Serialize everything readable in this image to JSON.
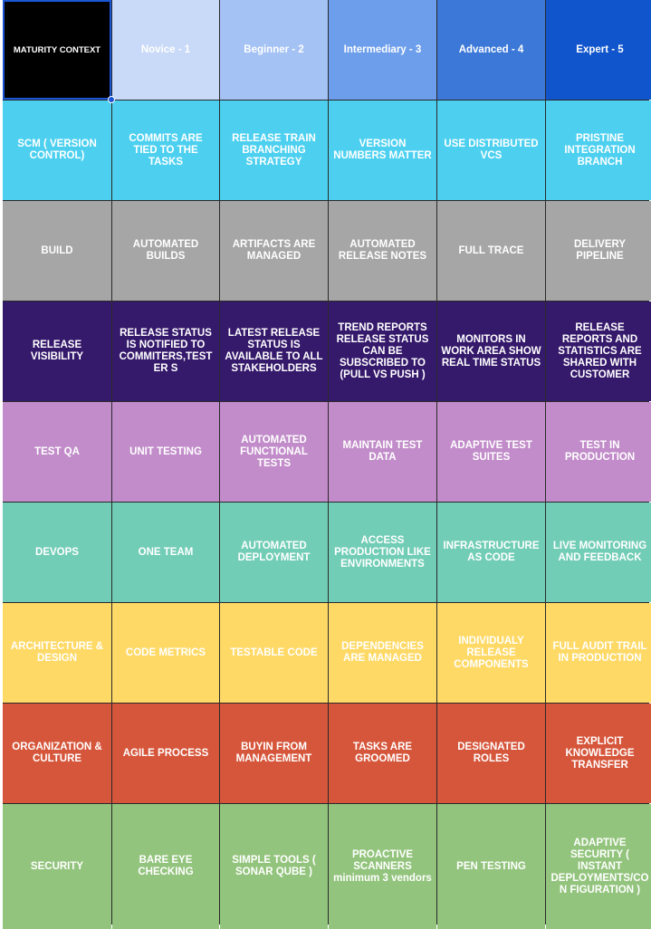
{
  "header": {
    "corner_label": "MATURITY CONTEXT",
    "corner_bg": "#000000",
    "columns": [
      {
        "label": "Novice - 1",
        "bg": "#c9daf8"
      },
      {
        "label": "Beginner - 2",
        "bg": "#a4c2f4"
      },
      {
        "label": "Intermediary - 3",
        "bg": "#6d9eeb"
      },
      {
        "label": "Advanced - 4",
        "bg": "#3c78d8"
      },
      {
        "label": "Expert - 5",
        "bg": "#1155cc"
      }
    ]
  },
  "rows": [
    {
      "label": "SCM ( VERSION CONTROL)",
      "bg": "#4dd0f0",
      "cells": [
        "COMMITS ARE TIED TO THE TASKS",
        "RELEASE TRAIN BRANCHING STRATEGY",
        "VERSION NUMBERS MATTER",
        "USE DISTRIBUTED VCS",
        "PRISTINE INTEGRATION BRANCH"
      ]
    },
    {
      "label": "BUILD",
      "bg": "#a6a6a6",
      "cells": [
        "AUTOMATED BUILDS",
        "ARTIFACTS ARE MANAGED",
        "AUTOMATED RELEASE NOTES",
        "FULL TRACE",
        "DELIVERY PIPELINE"
      ]
    },
    {
      "label": "RELEASE VISIBILITY",
      "bg": "#35196b",
      "cells": [
        "RELEASE STATUS IS NOTIFIED TO COMMITERS,TESTER S",
        "LATEST RELEASE STATUS IS AVAILABLE TO ALL STAKEHOLDERS",
        "TREND REPORTS RELEASE STATUS CAN BE SUBSCRIBED TO (PULL VS PUSH )",
        "MONITORS IN WORK AREA   SHOW REAL TIME STATUS",
        "RELEASE REPORTS AND STATISTICS ARE SHARED WITH CUSTOMER"
      ]
    },
    {
      "label": "TEST QA",
      "bg": "#c18cc9",
      "cells": [
        "UNIT TESTING",
        "AUTOMATED FUNCTIONAL TESTS",
        "MAINTAIN TEST DATA",
        "ADAPTIVE TEST SUITES",
        "TEST IN PRODUCTION"
      ]
    },
    {
      "label": "DEVOPS",
      "bg": "#72cdb6",
      "cells": [
        "ONE TEAM",
        "AUTOMATED DEPLOYMENT",
        "ACCESS PRODUCTION LIKE ENVIRONMENTS",
        "INFRASTRUCTURE AS CODE",
        "LIVE MONITORING AND FEEDBACK"
      ]
    },
    {
      "label": "ARCHITECTURE & DESIGN",
      "bg": "#ffd966",
      "cells": [
        "CODE METRICS",
        "TESTABLE CODE",
        "DEPENDENCIES ARE MANAGED",
        "INDIVIDUALY RELEASE COMPONENTS",
        "FULL AUDIT TRAIL IN PRODUCTION"
      ]
    },
    {
      "label": "ORGANIZATION & CULTURE",
      "bg": "#d6563b",
      "cells": [
        "AGILE PROCESS",
        "BUYIN FROM MANAGEMENT",
        "TASKS ARE GROOMED",
        "DESIGNATED ROLES",
        "EXPLICIT KNOWLEDGE TRANSFER"
      ]
    },
    {
      "label": "SECURITY",
      "bg": "#93c47d",
      "cells": [
        "BARE EYE CHECKING",
        "SIMPLE TOOLS ( SONAR QUBE )",
        "PROACTIVE SCANNERS minimum 3 vendors",
        "PEN TESTING",
        "ADAPTIVE SECURITY ( INSTANT DEPLOYMENTS/CON FIGURATION )"
      ]
    }
  ]
}
